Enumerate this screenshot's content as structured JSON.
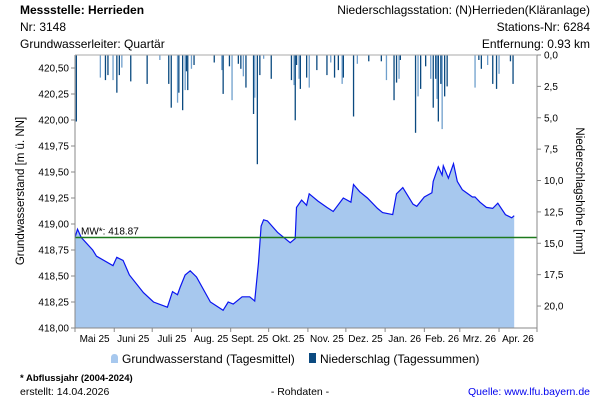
{
  "header": {
    "station": "Messstelle: Herrieden",
    "nr": "Nr: 3148",
    "aquifer": "Grundwasserleiter: Quartär",
    "precip_station": "Niederschlagsstation: (N)Herrieden(Kläranlage)",
    "precip_nr": "Stations-Nr: 6284",
    "distance": "Entfernung: 0.93 km"
  },
  "legend": {
    "groundwater": "Grundwasserstand (Tagesmittel)",
    "precip": "Niederschlag (Tagessummen)"
  },
  "footer": {
    "note": "* Abflussjahr (2004-2024)",
    "created": "erstellt:  14.04.2026",
    "raw": "- Rohdaten -",
    "source": "Quelle: www.lfu.bayern.de"
  },
  "colors": {
    "area_fill": "#a7c8ee",
    "line": "#0a14f0",
    "precip_dark": "#0b4a80",
    "precip_light": "#6f9fcc",
    "mean_line": "#1d7a1d",
    "source_link": "#0000ee"
  },
  "chart_data": {
    "type": "area",
    "xlabel": "",
    "ylabel": "Grundwasserstand [m ü. NN]",
    "y2label": "Niederschlagshöhe [mm]",
    "ylim": [
      418.0,
      420.625
    ],
    "y2lim": [
      0,
      21.75
    ],
    "y2_inverted": true,
    "xlim": [
      "2025-05-01",
      "2026-05-01"
    ],
    "x_tick_labels": [
      "Mai 25",
      "Juni 25",
      "Juli 25",
      "Aug. 25",
      "Sept. 25",
      "Okt. 25",
      "Nov. 25",
      "Dez. 25",
      "Jan. 26",
      "Feb. 26",
      "Mrz. 26",
      "Apr. 26"
    ],
    "y_tick_labels": [
      "418,00",
      "418,25",
      "418,50",
      "418,75",
      "419,00",
      "419,25",
      "419,50",
      "419,75",
      "420,00",
      "420,25",
      "420,50"
    ],
    "y_ticks": [
      418.0,
      418.25,
      418.5,
      418.75,
      419.0,
      419.25,
      419.5,
      419.75,
      420.0,
      420.25,
      420.5
    ],
    "y2_tick_labels": [
      "0,0",
      "2,5",
      "5,0",
      "7,5",
      "10,0",
      "12,5",
      "15,0",
      "17,5",
      "20,0"
    ],
    "y2_ticks": [
      0,
      2.5,
      5,
      7.5,
      10,
      12.5,
      15,
      17.5,
      20
    ],
    "grid": false,
    "legend_position": "bottom",
    "mean": {
      "label": "MW*: 418.87",
      "value": 418.87
    },
    "groundwater": [
      [
        "2025-05-01",
        418.87
      ],
      [
        "2025-05-03",
        418.95
      ],
      [
        "2025-05-06",
        418.87
      ],
      [
        "2025-05-15",
        418.75
      ],
      [
        "2025-05-18",
        418.69
      ],
      [
        "2025-05-31",
        418.6
      ],
      [
        "2025-06-03",
        418.68
      ],
      [
        "2025-06-08",
        418.65
      ],
      [
        "2025-06-13",
        418.51
      ],
      [
        "2025-06-24",
        418.34
      ],
      [
        "2025-07-02",
        418.25
      ],
      [
        "2025-07-13",
        418.2
      ],
      [
        "2025-07-17",
        418.35
      ],
      [
        "2025-07-21",
        418.32
      ],
      [
        "2025-07-23",
        418.39
      ],
      [
        "2025-07-27",
        418.51
      ],
      [
        "2025-07-31",
        418.55
      ],
      [
        "2025-08-05",
        418.49
      ],
      [
        "2025-08-16",
        418.25
      ],
      [
        "2025-08-26",
        418.17
      ],
      [
        "2025-08-30",
        418.25
      ],
      [
        "2025-09-03",
        418.23
      ],
      [
        "2025-09-10",
        418.3
      ],
      [
        "2025-09-16",
        418.3
      ],
      [
        "2025-09-20",
        418.26
      ],
      [
        "2025-09-23",
        418.63
      ],
      [
        "2025-09-25",
        418.98
      ],
      [
        "2025-09-27",
        419.04
      ],
      [
        "2025-09-30",
        419.03
      ],
      [
        "2025-10-08",
        418.92
      ],
      [
        "2025-10-18",
        418.82
      ],
      [
        "2025-10-22",
        418.86
      ],
      [
        "2025-10-23",
        419.16
      ],
      [
        "2025-10-27",
        419.23
      ],
      [
        "2025-10-31",
        419.18
      ],
      [
        "2025-11-02",
        419.29
      ],
      [
        "2025-11-09",
        419.22
      ],
      [
        "2025-11-16",
        419.16
      ],
      [
        "2025-11-21",
        419.12
      ],
      [
        "2025-11-29",
        419.25
      ],
      [
        "2025-12-05",
        419.21
      ],
      [
        "2025-12-07",
        419.38
      ],
      [
        "2025-12-12",
        419.31
      ],
      [
        "2025-12-18",
        419.25
      ],
      [
        "2025-12-26",
        419.15
      ],
      [
        "2025-12-30",
        419.11
      ],
      [
        "2026-01-07",
        419.09
      ],
      [
        "2026-01-10",
        419.29
      ],
      [
        "2026-01-15",
        419.35
      ],
      [
        "2026-01-23",
        419.19
      ],
      [
        "2026-01-26",
        419.17
      ],
      [
        "2026-02-01",
        419.26
      ],
      [
        "2026-02-07",
        419.3
      ],
      [
        "2026-02-08",
        419.41
      ],
      [
        "2026-02-12",
        419.55
      ],
      [
        "2026-02-15",
        419.47
      ],
      [
        "2026-02-16",
        419.56
      ],
      [
        "2026-02-20",
        419.44
      ],
      [
        "2026-02-24",
        419.58
      ],
      [
        "2026-02-27",
        419.41
      ],
      [
        "2026-03-03",
        419.33
      ],
      [
        "2026-03-11",
        419.26
      ],
      [
        "2026-03-13",
        419.26
      ],
      [
        "2026-03-17",
        419.21
      ],
      [
        "2026-03-22",
        419.16
      ],
      [
        "2026-03-27",
        419.15
      ],
      [
        "2026-03-31",
        419.2
      ],
      [
        "2026-04-06",
        419.09
      ],
      [
        "2026-04-11",
        419.06
      ],
      [
        "2026-04-13",
        419.08
      ]
    ],
    "precipitation": [
      [
        "2025-05-02",
        5.3
      ],
      [
        "2025-05-21",
        1.8
      ],
      [
        "2025-05-25",
        2.0
      ],
      [
        "2025-05-27",
        1.6
      ],
      [
        "2025-05-31",
        2.0
      ],
      [
        "2025-06-03",
        3.0
      ],
      [
        "2025-06-05",
        1.6
      ],
      [
        "2025-06-07",
        1.0
      ],
      [
        "2025-06-14",
        2.1
      ],
      [
        "2025-06-27",
        2.3
      ],
      [
        "2025-07-07",
        0.4
      ],
      [
        "2025-07-14",
        2.3
      ],
      [
        "2025-07-16",
        4.2
      ],
      [
        "2025-07-21",
        3.8
      ],
      [
        "2025-07-22",
        3.0
      ],
      [
        "2025-07-25",
        4.4
      ],
      [
        "2025-07-27",
        2.8
      ],
      [
        "2025-07-28",
        1.3
      ],
      [
        "2025-07-29",
        2.8
      ],
      [
        "2025-08-01",
        1.1
      ],
      [
        "2025-08-03",
        0.8
      ],
      [
        "2025-08-19",
        0.6
      ],
      [
        "2025-08-25",
        1.2
      ],
      [
        "2025-08-26",
        3.1
      ],
      [
        "2025-08-31",
        0.9
      ],
      [
        "2025-09-02",
        3.6
      ],
      [
        "2025-09-07",
        0.7
      ],
      [
        "2025-09-09",
        1.1
      ],
      [
        "2025-09-11",
        1.7
      ],
      [
        "2025-09-13",
        2.6
      ],
      [
        "2025-09-19",
        4.7
      ],
      [
        "2025-09-20",
        3.4
      ],
      [
        "2025-09-22",
        8.7
      ],
      [
        "2025-09-24",
        1.6
      ],
      [
        "2025-09-27",
        0.3
      ],
      [
        "2025-10-03",
        1.9
      ],
      [
        "2025-10-19",
        2.0
      ],
      [
        "2025-10-21",
        2.4
      ],
      [
        "2025-10-22",
        5.2
      ],
      [
        "2025-10-23",
        0.8
      ],
      [
        "2025-10-25",
        1.9
      ],
      [
        "2025-10-26",
        2.7
      ],
      [
        "2025-10-31",
        1.8
      ],
      [
        "2025-11-02",
        2.6
      ],
      [
        "2025-11-08",
        1.2
      ],
      [
        "2025-11-16",
        1.6
      ],
      [
        "2025-11-19",
        0.6
      ],
      [
        "2025-11-22",
        1.8
      ],
      [
        "2025-11-25",
        1.2
      ],
      [
        "2025-11-28",
        2.3
      ],
      [
        "2025-11-29",
        1.8
      ],
      [
        "2025-12-07",
        4.9
      ],
      [
        "2025-12-10",
        0.7
      ],
      [
        "2025-12-19",
        0.5
      ],
      [
        "2025-12-29",
        0.5
      ],
      [
        "2026-01-02",
        2.0
      ],
      [
        "2026-01-08",
        3.6
      ],
      [
        "2026-01-10",
        2.2
      ],
      [
        "2026-01-12",
        1.9
      ],
      [
        "2026-01-13",
        0.4
      ],
      [
        "2026-01-25",
        6.2
      ],
      [
        "2026-01-27",
        3.3
      ],
      [
        "2026-01-29",
        2.7
      ],
      [
        "2026-02-02",
        0.9
      ],
      [
        "2026-02-06",
        1.9
      ],
      [
        "2026-02-08",
        4.2
      ],
      [
        "2026-02-10",
        1.9
      ],
      [
        "2026-02-11",
        3.5
      ],
      [
        "2026-02-12",
        5.3
      ],
      [
        "2026-02-14",
        2.3
      ],
      [
        "2026-02-15",
        5.9
      ],
      [
        "2026-02-17",
        3.3
      ],
      [
        "2026-02-19",
        2.5
      ],
      [
        "2026-03-13",
        2.6
      ],
      [
        "2026-03-16",
        0.4
      ],
      [
        "2026-03-18",
        1.1
      ],
      [
        "2026-03-23",
        0.8
      ],
      [
        "2026-03-27",
        2.3
      ],
      [
        "2026-03-30",
        2.7
      ],
      [
        "2026-04-01",
        1.5
      ],
      [
        "2026-04-10",
        0.5
      ],
      [
        "2026-04-12",
        2.3
      ]
    ]
  }
}
